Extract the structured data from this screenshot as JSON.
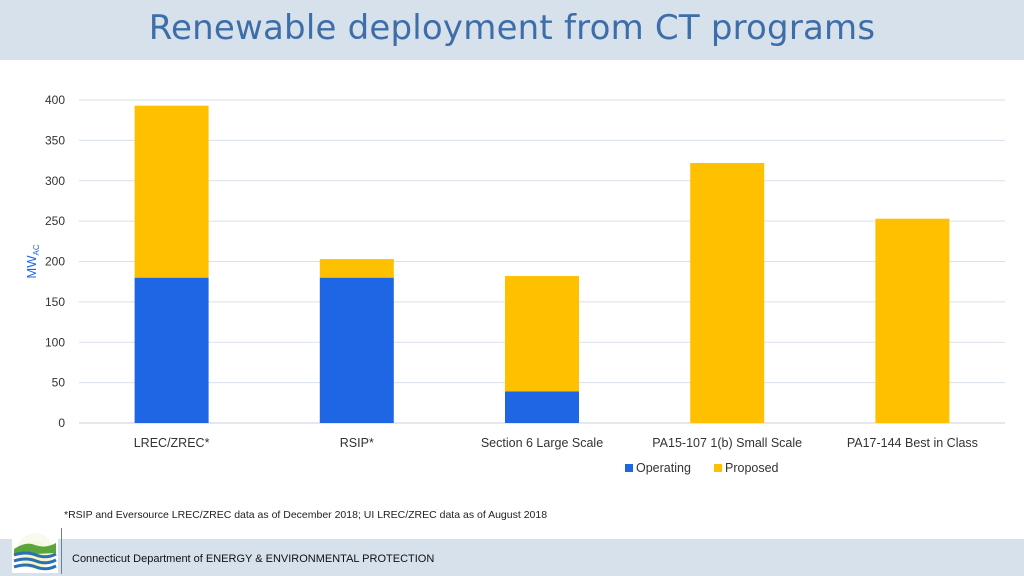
{
  "header": {
    "title": "Renewable deployment from CT programs"
  },
  "chart_data": {
    "type": "bar",
    "stacked": true,
    "title": "Renewable deployment from CT programs",
    "ylabel_main": "MW",
    "ylabel_sub": "AC",
    "xlabel": "",
    "ylim": [
      0,
      400
    ],
    "yticks": [
      0,
      50,
      100,
      150,
      200,
      250,
      300,
      350,
      400
    ],
    "grid": true,
    "legend_position": "bottom-right",
    "categories": [
      "LREC/ZREC*",
      "RSIP*",
      "Section 6 Large Scale",
      "PA15-107 1(b) Small Scale",
      "PA17-144 Best in Class"
    ],
    "series": [
      {
        "name": "Operating",
        "color": "#1f66e5",
        "values": [
          180,
          180,
          39,
          0,
          0
        ]
      },
      {
        "name": "Proposed",
        "color": "#ffc000",
        "values": [
          213,
          23,
          143,
          322,
          253
        ]
      }
    ]
  },
  "footnote": "*RSIP and Eversource LREC/ZREC data as of December 2018; UI LREC/ZREC data as of August 2018",
  "footer": {
    "agency": "Connecticut Department of ENERGY & ENVIRONMENTAL PROTECTION"
  },
  "colors": {
    "header_bg": "#d6e1ec",
    "title": "#3e6ea8",
    "axis_label": "#1f66e5",
    "gridline": "#d9e1ea"
  }
}
